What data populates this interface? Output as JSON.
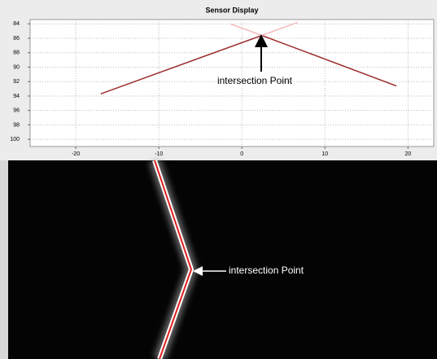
{
  "chart_data": {
    "type": "line",
    "title": "Sensor Display",
    "series": [
      {
        "color": "#9b2a2a",
        "x": [
          -17,
          2.4,
          18.6
        ],
        "values": [
          93.7,
          85.6,
          92.6
        ]
      },
      {
        "color": "#f4b8b8",
        "x": [
          -1.4,
          2.4,
          6.7
        ],
        "values": [
          84,
          85.6,
          83.8
        ]
      }
    ],
    "xlim": [
      -25.5,
      23.1
    ],
    "xticks": [
      -20,
      -10,
      0,
      10,
      20
    ],
    "ylim": [
      101,
      83.4
    ],
    "yticks": [
      84,
      86,
      88,
      90,
      92,
      94,
      96,
      98,
      100
    ],
    "grid": true,
    "annotation": "intersection Point"
  },
  "image": {
    "annotation": "intersection Point"
  }
}
